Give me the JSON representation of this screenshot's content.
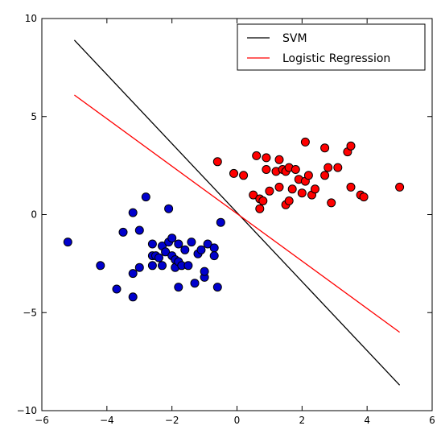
{
  "chart_data": {
    "type": "scatter",
    "title": "",
    "xlabel": "",
    "ylabel": "",
    "xlim": [
      -6,
      6
    ],
    "ylim": [
      -10,
      10
    ],
    "xticks": [
      -6,
      -4,
      -2,
      0,
      2,
      4,
      6
    ],
    "yticks": [
      -10,
      -5,
      0,
      5,
      10
    ],
    "grid": false,
    "legend": {
      "position": "top-right",
      "entries": [
        {
          "label": "SVM",
          "color": "#000000"
        },
        {
          "label": "Logistic Regression",
          "color": "#ff0000"
        }
      ]
    },
    "lines": [
      {
        "name": "SVM",
        "color": "#000000",
        "x": [
          -5.0,
          5.0
        ],
        "y": [
          8.9,
          -8.7
        ]
      },
      {
        "name": "Logistic Regression",
        "color": "#ff0000",
        "x": [
          -5.0,
          5.0
        ],
        "y": [
          6.1,
          -6.0
        ]
      }
    ],
    "scatter_series": [
      {
        "color": "#0000cc",
        "points": [
          [
            -5.2,
            -1.4
          ],
          [
            -4.2,
            -2.6
          ],
          [
            -3.7,
            -3.8
          ],
          [
            -3.5,
            -0.9
          ],
          [
            -3.2,
            0.1
          ],
          [
            -3.2,
            -3.0
          ],
          [
            -3.2,
            -4.2
          ],
          [
            -3.0,
            -2.7
          ],
          [
            -3.0,
            -0.8
          ],
          [
            -2.8,
            0.9
          ],
          [
            -2.6,
            -1.5
          ],
          [
            -2.6,
            -2.1
          ],
          [
            -2.6,
            -2.6
          ],
          [
            -2.5,
            -2.1
          ],
          [
            -2.4,
            -2.2
          ],
          [
            -2.3,
            -2.6
          ],
          [
            -2.3,
            -1.6
          ],
          [
            -2.2,
            -1.9
          ],
          [
            -2.1,
            0.3
          ],
          [
            -2.1,
            -1.4
          ],
          [
            -2.0,
            -2.1
          ],
          [
            -2.0,
            -1.2
          ],
          [
            -1.9,
            -2.7
          ],
          [
            -1.9,
            -2.3
          ],
          [
            -1.8,
            -1.5
          ],
          [
            -1.8,
            -3.7
          ],
          [
            -1.8,
            -2.4
          ],
          [
            -1.7,
            -2.6
          ],
          [
            -1.6,
            -1.8
          ],
          [
            -1.5,
            -2.6
          ],
          [
            -1.4,
            -1.4
          ],
          [
            -1.3,
            -3.5
          ],
          [
            -1.2,
            -2.0
          ],
          [
            -1.1,
            -1.8
          ],
          [
            -1.0,
            -3.2
          ],
          [
            -1.0,
            -2.9
          ],
          [
            -0.9,
            -1.5
          ],
          [
            -0.7,
            -1.7
          ],
          [
            -0.7,
            -2.1
          ],
          [
            -0.6,
            -3.7
          ],
          [
            -0.5,
            -0.4
          ]
        ]
      },
      {
        "color": "#ff0000",
        "points": [
          [
            -0.6,
            2.7
          ],
          [
            -0.1,
            2.1
          ],
          [
            0.2,
            2.0
          ],
          [
            0.5,
            1.0
          ],
          [
            0.6,
            3.0
          ],
          [
            0.7,
            0.8
          ],
          [
            0.7,
            0.3
          ],
          [
            0.8,
            0.7
          ],
          [
            0.9,
            2.9
          ],
          [
            0.9,
            2.3
          ],
          [
            1.0,
            1.2
          ],
          [
            1.2,
            2.2
          ],
          [
            1.3,
            2.8
          ],
          [
            1.3,
            1.4
          ],
          [
            1.4,
            2.3
          ],
          [
            1.5,
            2.2
          ],
          [
            1.5,
            0.5
          ],
          [
            1.6,
            2.4
          ],
          [
            1.6,
            0.7
          ],
          [
            1.7,
            1.3
          ],
          [
            1.8,
            2.3
          ],
          [
            1.9,
            1.8
          ],
          [
            2.0,
            1.1
          ],
          [
            2.1,
            3.7
          ],
          [
            2.1,
            1.7
          ],
          [
            2.2,
            2.0
          ],
          [
            2.3,
            1.0
          ],
          [
            2.4,
            1.3
          ],
          [
            2.7,
            3.4
          ],
          [
            2.7,
            2.0
          ],
          [
            2.8,
            2.4
          ],
          [
            2.9,
            0.6
          ],
          [
            3.1,
            2.4
          ],
          [
            3.4,
            3.2
          ],
          [
            3.5,
            3.5
          ],
          [
            3.5,
            1.4
          ],
          [
            3.8,
            1.0
          ],
          [
            3.9,
            0.9
          ],
          [
            5.0,
            1.4
          ]
        ]
      }
    ]
  }
}
